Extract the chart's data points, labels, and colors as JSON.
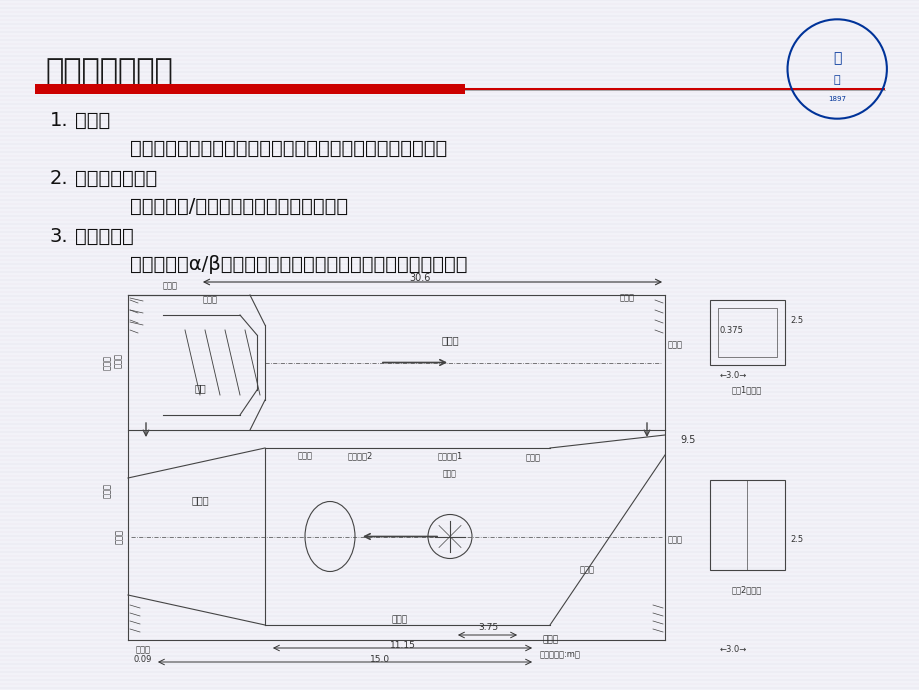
{
  "bg_color": "#f0f0f8",
  "slide_bg": "#f5f5f8",
  "title": "低速风洞的组成",
  "title_color": "#1a1a1a",
  "title_fontsize": 22,
  "red_bar_color": "#cc0000",
  "line_color": "#cccccc",
  "text_color": "#111111",
  "blue_text": "#003399",
  "items": [
    {
      "num": "1.",
      "head": "洞体：",
      "detail": "动力段、扩散段、稳定段、收缩段、试验段、蜂窝器、阻尼网"
    },
    {
      "num": "2.",
      "head": "动力驱动系统：",
      "detail": "直流调速器/交流变速器控制电机驱动风扇"
    },
    {
      "num": "3.",
      "head": "测控系统：",
      "detail": "速压控制、α/β机构控制、移测架控制、风压（速）测量系统等"
    }
  ],
  "diagram_labels": {
    "top_dim": "30.6",
    "guide_vane_tl": "导流片",
    "power_section": "动力段",
    "diffuser_top": "扩散段",
    "turning_vane_tr": "拐角段",
    "guide_vane_tr": "导流片",
    "fan": "风机",
    "stabilizer": "稳定段",
    "balance_joint": "平衡缝",
    "building_turntable": "建筑转盘2",
    "car_turntable": "汽车转盘1",
    "contraction": "收缩段",
    "suction_port": "抽吸口",
    "diffuser_bot": "扩散段",
    "test_section": "试验段",
    "dim_375": "3.75",
    "dim_1115": "11.15",
    "dim_009": "0.09",
    "dim_150": "15.0",
    "honeycomb": "蜂窝器",
    "unit": "（尺寸单位:m）",
    "guide_vane_bl": "导流片",
    "turning_bot_l": "拐角段",
    "turning_bot_r": "拐角段",
    "guide_vane_br": "导流片",
    "dim_95": "9.5",
    "dim_0375": "0.375",
    "dim_25_top": "2.5",
    "dim_30_top": "3.0",
    "turntable1_section": "转盘1处断面",
    "dim_25_bot": "2.5",
    "dim_30_bot": "3.0",
    "turntable2_section": "转盘2处断面",
    "turning_tl": "拐角段"
  }
}
